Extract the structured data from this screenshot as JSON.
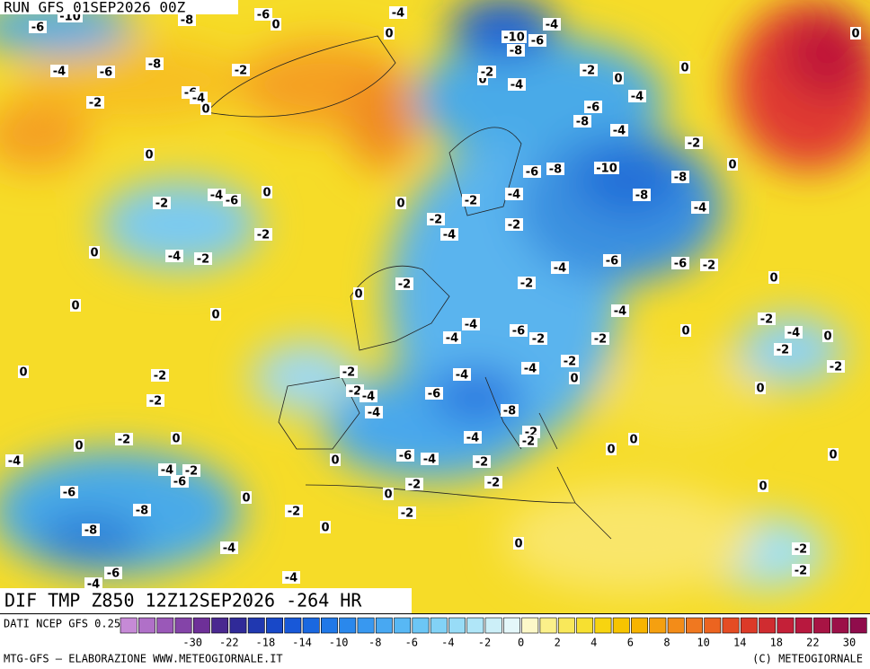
{
  "header": {
    "run": "RUN GFS 01SEP2026 00Z"
  },
  "footer": {
    "product": "DIF TMP Z850 12Z12SEP2026 -264 HR"
  },
  "legend": {
    "source": "DATI NCEP GFS 0.25°",
    "colors": [
      "#c68ad6",
      "#b070c8",
      "#9a58b8",
      "#8444a8",
      "#6e3098",
      "#4a2890",
      "#302a98",
      "#2038b0",
      "#1848c8",
      "#1858d8",
      "#1a68e0",
      "#2078e8",
      "#2a88ec",
      "#3898f0",
      "#48a8f2",
      "#58b8f4",
      "#6cc6f5",
      "#82d2f6",
      "#98dcf7",
      "#b0e6f8",
      "#cceff8",
      "#e4f7fa",
      "#fdf8c8",
      "#fbf08a",
      "#f9e85a",
      "#f7e030",
      "#f7d410",
      "#f7c400",
      "#f7b400",
      "#f5a010",
      "#f38c18",
      "#f07820",
      "#ec6420",
      "#e44c24",
      "#dc3a28",
      "#d02c30",
      "#c42038",
      "#b8183e",
      "#a81444",
      "#9c1048",
      "#900c4c"
    ],
    "ticks": [
      "-30",
      "-22",
      "-18",
      "-14",
      "-10",
      "-8",
      "-6",
      "-4",
      "-2",
      "0",
      "2",
      "4",
      "6",
      "8",
      "10",
      "14",
      "18",
      "22",
      "30"
    ]
  },
  "credits": {
    "left": "MTG-GFS — ELABORAZIONE WWW.METEOGIORNALE.IT",
    "right": "(C) METEOGIORNALE"
  },
  "map": {
    "contour_labels": [
      "-6",
      "-10",
      "-8",
      "-6",
      "0",
      "-4",
      "0",
      "-10",
      "-6",
      "-8",
      "-4",
      "0",
      "-4",
      "-6",
      "-8",
      "-2",
      "0",
      "-2",
      "-4",
      "-2",
      "0",
      "0",
      "-4",
      "-2",
      "-6",
      "-4",
      "0",
      "-6",
      "-8",
      "-4",
      "-2",
      "0",
      "-6",
      "-8",
      "-10",
      "-8",
      "0",
      "-2",
      "-4",
      "-6",
      "0",
      "0",
      "-4",
      "-2",
      "-2",
      "-2",
      "-8",
      "-4",
      "-2",
      "-4",
      "0",
      "-4",
      "-2",
      "-4",
      "-6",
      "-6",
      "-2",
      "0",
      "-2",
      "-2",
      "0",
      "0",
      "0",
      "-4",
      "-2",
      "-4",
      "-6",
      "-2",
      "-4",
      "-2",
      "0",
      "-4",
      "-2",
      "0",
      "-2",
      "0",
      "-2",
      "-2",
      "-4",
      "-4",
      "-2",
      "0",
      "0",
      "-2",
      "-2",
      "-4",
      "-6",
      "-4",
      "-8",
      "0",
      "-2",
      "0",
      "-4",
      "-2",
      "-2",
      "0",
      "0",
      "0",
      "-4",
      "-6",
      "-4",
      "-2",
      "0",
      "-4",
      "-2",
      "-6",
      "-6",
      "0",
      "-2",
      "-2",
      "0",
      "0",
      "-8",
      "-2",
      "-2",
      "0",
      "-8",
      "0",
      "-4",
      "-2",
      "-2",
      "-6",
      "-4",
      "-4"
    ]
  }
}
